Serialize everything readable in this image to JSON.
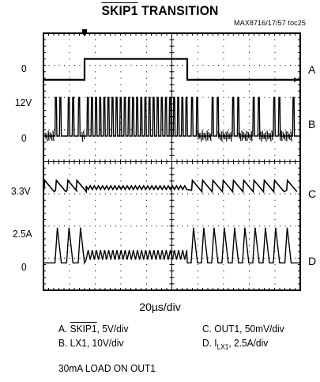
{
  "title": {
    "prefix": "",
    "overlined": "SKIP1",
    "suffix": " TRANSITION"
  },
  "figure_id": "MAX8716/17/57 toc25",
  "time_div": "20µs/div",
  "legend": {
    "a_prefix": "A. ",
    "a_overlined": "SKIP1",
    "a_suffix": ", 5V/div",
    "b": "B. LX1, 10V/div",
    "c": "C. OUT1, 50mV/div",
    "d_prefix": "D. I",
    "d_sub": "LX1",
    "d_suffix": ", 2.5A/div"
  },
  "note": "30mA LOAD ON OUT1",
  "colors": {
    "trace": "#000000",
    "grid": "#000000",
    "background": "#ffffff"
  },
  "chart_data": {
    "type": "line",
    "grid": true,
    "x_divisions": 10,
    "y_divisions": 8,
    "x_scale": "20µs/div",
    "channels": [
      {
        "name": "A",
        "label": "A",
        "scale": "5V/div",
        "left_label": "0",
        "description_levels": {
          "low_div": 6.55,
          "high_div": 7.2
        },
        "transition_up_div": 1.6,
        "transition_down_div": 5.6
      },
      {
        "name": "B",
        "label": "B",
        "scale": "10V/div",
        "left_labels": [
          "12V",
          "0"
        ]
      },
      {
        "name": "C",
        "label": "C",
        "scale": "50mV/div",
        "left_label": "3.3V"
      },
      {
        "name": "D",
        "label": "D",
        "scale": "2.5A/div",
        "left_labels": [
          "2.5A",
          "0"
        ]
      }
    ]
  }
}
